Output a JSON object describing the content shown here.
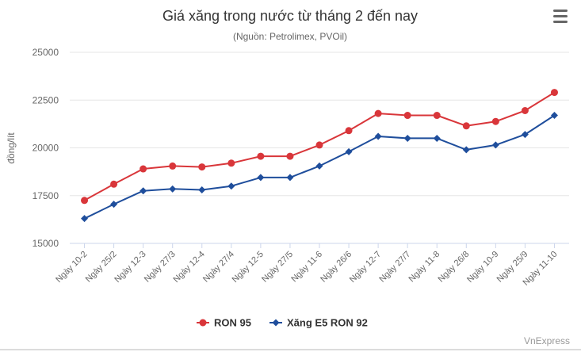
{
  "chart_data": {
    "type": "line",
    "title": "Giá xăng trong nước từ tháng 2 đến nay",
    "subtitle": "(Nguồn: Petrolimex, PVOil)",
    "xlabel": "",
    "ylabel": "đồng/lít",
    "ylim": [
      15000,
      25000
    ],
    "yticks": [
      15000,
      17500,
      20000,
      22500,
      25000
    ],
    "ytick_labels": [
      "15000",
      "17500",
      "20000",
      "22500",
      "25000"
    ],
    "grid": true,
    "legend_position": "bottom-center",
    "categories": [
      "Ngày 10-2",
      "Ngày 25/2",
      "Ngày 12-3",
      "Ngày 27/3",
      "Ngày 12-4",
      "Ngày 27/4",
      "Ngày 12-5",
      "Ngày 27/5",
      "Ngày 11-6",
      "Ngày 26/6",
      "Ngày 12-7",
      "Ngày 27/7",
      "Ngày 11-8",
      "Ngày 26/8",
      "Ngày 10-9",
      "Ngày 25/9",
      "Ngày 11-10"
    ],
    "series": [
      {
        "name": "RON 95",
        "color": "#d9363a",
        "marker": "circle",
        "values": [
          17250,
          18100,
          18900,
          19050,
          19000,
          19200,
          19560,
          19560,
          20150,
          20900,
          21800,
          21700,
          21700,
          21150,
          21380,
          21950,
          22900
        ]
      },
      {
        "name": "Xăng E5 RON 92",
        "color": "#1f4e9c",
        "marker": "diamond",
        "values": [
          16300,
          17050,
          17750,
          17850,
          17800,
          18000,
          18450,
          18450,
          19050,
          19800,
          20600,
          20500,
          20500,
          19900,
          20150,
          20700,
          21700
        ]
      }
    ]
  },
  "credit": "VnExpress",
  "menu_icon": "hamburger-menu-icon"
}
